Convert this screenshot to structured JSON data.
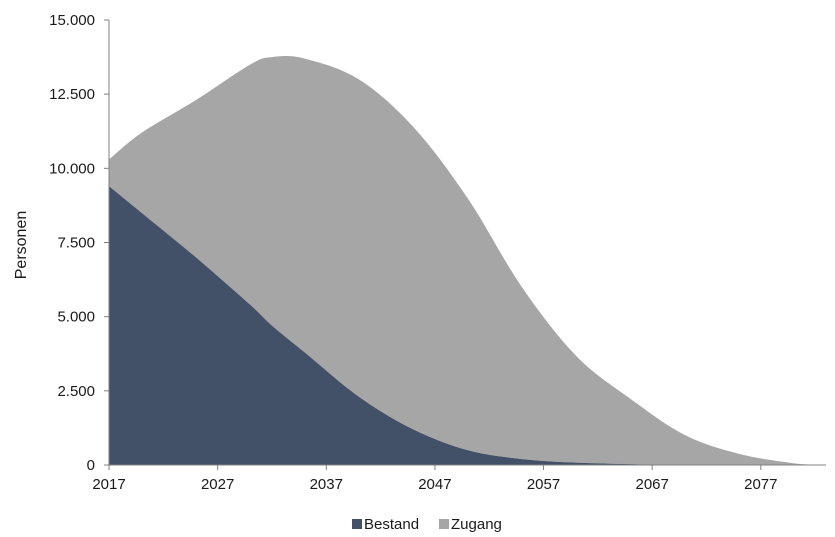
{
  "chart_data": {
    "type": "area",
    "stacked": true,
    "title": "",
    "xlabel": "",
    "ylabel": "Personen",
    "xlim": [
      2017,
      2083
    ],
    "ylim": [
      0,
      15000
    ],
    "x_ticks": [
      "2017",
      "2027",
      "2037",
      "2047",
      "2057",
      "2067",
      "2077"
    ],
    "y_ticks": [
      "0",
      "2.500",
      "5.000",
      "7.500",
      "10.000",
      "12.500",
      "15.000"
    ],
    "grid": false,
    "legend": {
      "position": "bottom"
    },
    "x": [
      2017,
      2020,
      2025,
      2030,
      2032,
      2035,
      2040,
      2045,
      2050,
      2055,
      2060,
      2065,
      2070,
      2075,
      2080,
      2083
    ],
    "series": [
      {
        "name": "Bestand",
        "color": "#425068",
        "values": [
          9400,
          8500,
          7000,
          5400,
          4700,
          3800,
          2300,
          1200,
          500,
          200,
          80,
          30,
          10,
          5,
          0,
          0
        ]
      },
      {
        "name": "Zugang",
        "color": "#a6a6a6",
        "values": [
          900,
          2700,
          5300,
          8100,
          9050,
          9900,
          10700,
          10200,
          8500,
          5800,
          3600,
          2200,
          1000,
          370,
          60,
          0
        ]
      }
    ]
  }
}
